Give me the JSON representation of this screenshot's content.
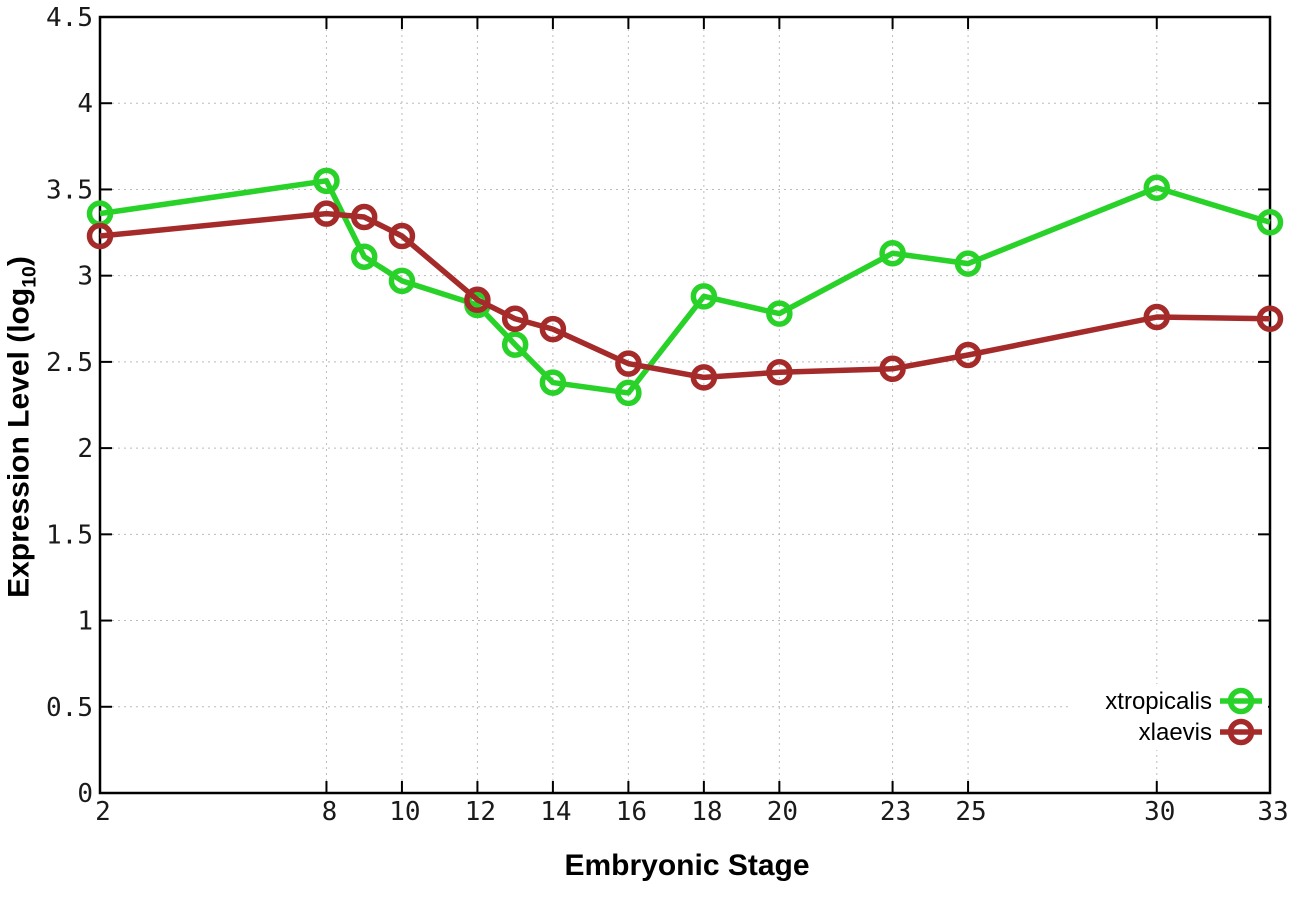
{
  "page": {
    "background": "#ffffff"
  },
  "chart_data": {
    "type": "line",
    "title": "",
    "xlabel": "Embryonic Stage",
    "ylabel": "Expression Level (log10)",
    "ylabel_parts": {
      "prefix": "Expression Level (log",
      "subscript": "10",
      "suffix": ")"
    },
    "xlim": [
      2,
      33
    ],
    "ylim": [
      0,
      4.5
    ],
    "grid": true,
    "legend_position": "inside-bottom-right",
    "axis_color": "#000000",
    "grid_color": "#bbbbbb",
    "x_ticks": {
      "values": [
        2,
        8,
        10,
        12,
        14,
        16,
        18,
        20,
        23,
        25,
        30,
        33
      ],
      "labels": [
        "2",
        "8",
        "10",
        "12",
        "14",
        "16",
        "18",
        "20",
        "23",
        "25",
        "30",
        "33"
      ]
    },
    "y_ticks": {
      "values": [
        0,
        0.5,
        1,
        1.5,
        2,
        2.5,
        3,
        3.5,
        4,
        4.5
      ],
      "labels": [
        "0",
        "0.5",
        "1",
        "1.5",
        "2",
        "2.5",
        "3",
        "3.5",
        "4",
        "4.5"
      ]
    },
    "x": [
      2,
      8,
      9,
      10,
      12,
      13,
      14,
      16,
      18,
      20,
      23,
      25,
      30,
      33
    ],
    "series": [
      {
        "name": "xtropicalis",
        "color": "#28d228",
        "values": [
          3.36,
          3.55,
          3.11,
          2.97,
          2.83,
          2.6,
          2.38,
          2.32,
          2.88,
          2.78,
          3.13,
          3.07,
          3.51,
          3.31
        ]
      },
      {
        "name": "xlaevis",
        "color": "#a52a2a",
        "values": [
          3.23,
          3.36,
          3.34,
          3.23,
          2.86,
          2.75,
          2.69,
          2.49,
          2.41,
          2.44,
          2.46,
          2.54,
          2.76,
          2.75
        ]
      }
    ]
  }
}
